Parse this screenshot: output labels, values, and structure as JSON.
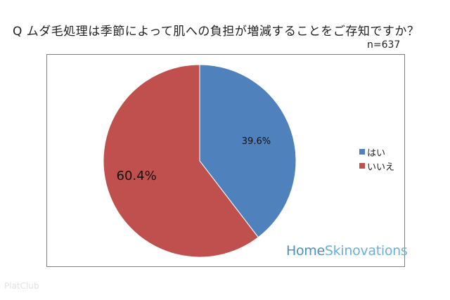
{
  "title": "Q ムダ毛処理は季節によって肌への負担が増減することをご存知ですか？",
  "sample_size": "n=637",
  "brand": {
    "part1": "Home",
    "part2": "Skinovations"
  },
  "watermark": "PlatClub",
  "colors": {
    "yes": "#4F81BD",
    "no": "#C0504D"
  },
  "chart_data": {
    "type": "pie",
    "title": "Q ムダ毛処理は季節によって肌への負担が増減することをご存知ですか？",
    "categories": [
      "はい",
      "いいえ"
    ],
    "values": [
      39.6,
      60.4
    ],
    "data_labels": [
      "39.6%",
      "60.4%"
    ],
    "legend_position": "right"
  }
}
